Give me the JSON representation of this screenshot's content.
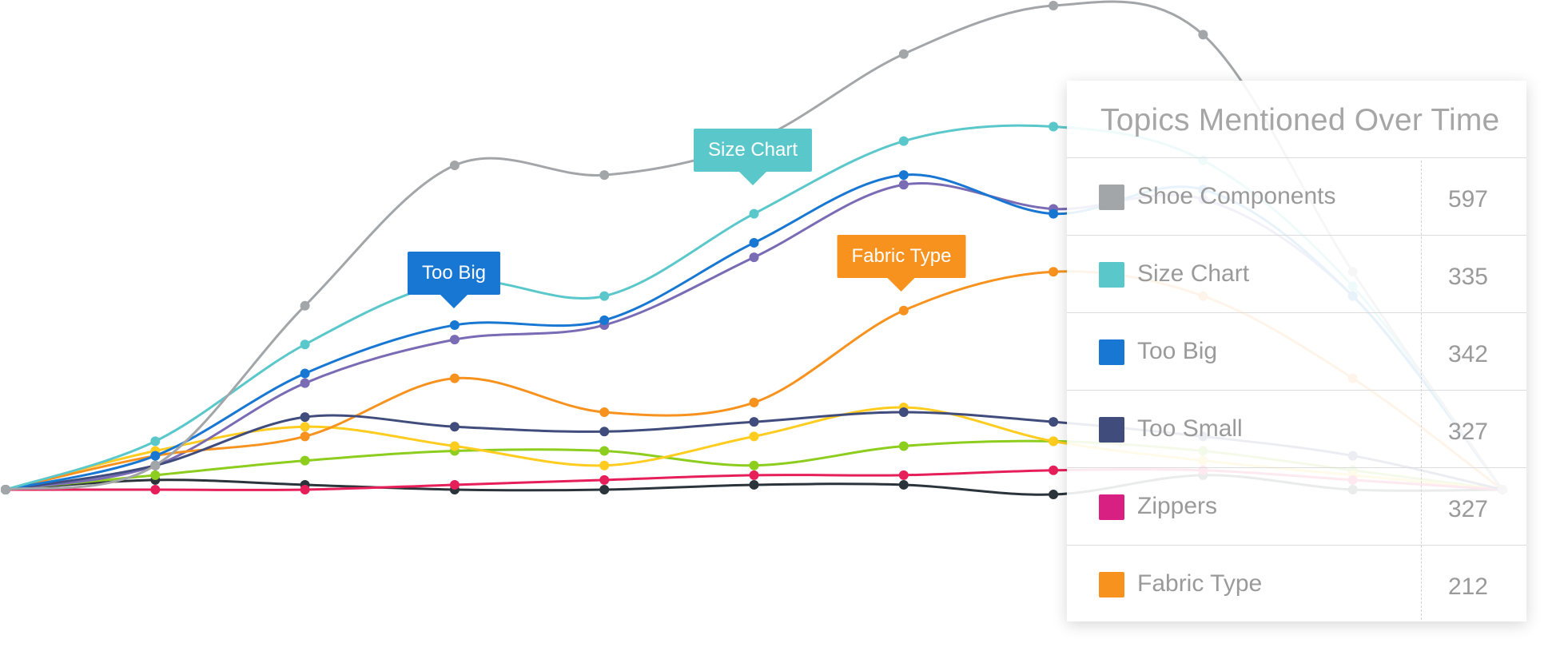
{
  "chart_data": {
    "type": "line",
    "x": [
      1,
      2,
      3,
      4,
      5,
      6,
      7,
      8,
      9,
      10,
      11
    ],
    "ylim": [
      0,
      100
    ],
    "series": [
      {
        "name": "Shoe Components",
        "color": "#a2a6a9",
        "values": [
          0,
          5,
          38,
          67,
          65,
          72,
          90,
          100,
          94,
          45,
          0
        ]
      },
      {
        "name": "Size Chart",
        "color": "#5ac8cb",
        "values": [
          0,
          10,
          30,
          43,
          40,
          57,
          72,
          75,
          68,
          42,
          0
        ]
      },
      {
        "name": "Too Big",
        "color": "#1777d2",
        "values": [
          0,
          7,
          24,
          34,
          35,
          51,
          65,
          57,
          62,
          40,
          0
        ]
      },
      {
        "name": "Too Small",
        "color": "#404c7c",
        "values": [
          0,
          5,
          15,
          13,
          12,
          14,
          16,
          14,
          11,
          7,
          0
        ]
      },
      {
        "name": "Zippers",
        "color": "#e61f5a",
        "values": [
          0,
          0,
          0,
          1,
          2,
          3,
          3,
          4,
          4,
          2,
          0
        ]
      },
      {
        "name": "Fabric Type",
        "color": "#f7921e",
        "values": [
          0,
          7,
          11,
          23,
          16,
          18,
          37,
          45,
          40,
          23,
          0
        ]
      },
      {
        "name": "",
        "color": "#7a6bb5",
        "values": [
          0,
          5,
          22,
          31,
          34,
          48,
          63,
          58,
          60,
          40,
          0
        ]
      },
      {
        "name": "",
        "color": "#ffcc1f",
        "values": [
          0,
          8,
          13,
          9,
          5,
          11,
          17,
          10,
          6,
          3,
          0
        ]
      },
      {
        "name": "",
        "color": "#8dcd1e",
        "values": [
          0,
          3,
          6,
          8,
          8,
          5,
          9,
          10,
          8,
          4,
          0
        ]
      },
      {
        "name": "",
        "color": "#2a343a",
        "values": [
          0,
          2,
          1,
          0,
          0,
          1,
          1,
          -1,
          3,
          0,
          0
        ]
      }
    ],
    "callouts": [
      {
        "text": "Too Big",
        "color": "#1777d2"
      },
      {
        "text": "Size Chart",
        "color": "#5ac8cb"
      },
      {
        "text": "Fabric Type",
        "color": "#f7921e"
      }
    ]
  },
  "legend": {
    "title": "Topics Mentioned Over Time",
    "items": [
      {
        "label": "Shoe Components",
        "value": "597",
        "color": "#a2a6a9"
      },
      {
        "label": "Size Chart",
        "value": "335",
        "color": "#5ac8cb"
      },
      {
        "label": "Too Big",
        "value": "342",
        "color": "#1777d2"
      },
      {
        "label": "Too Small",
        "value": "327",
        "color": "#404c7c"
      },
      {
        "label": "Zippers",
        "value": "327",
        "color": "#d81f82"
      },
      {
        "label": "Fabric Type",
        "value": "212",
        "color": "#f7921e"
      }
    ]
  }
}
